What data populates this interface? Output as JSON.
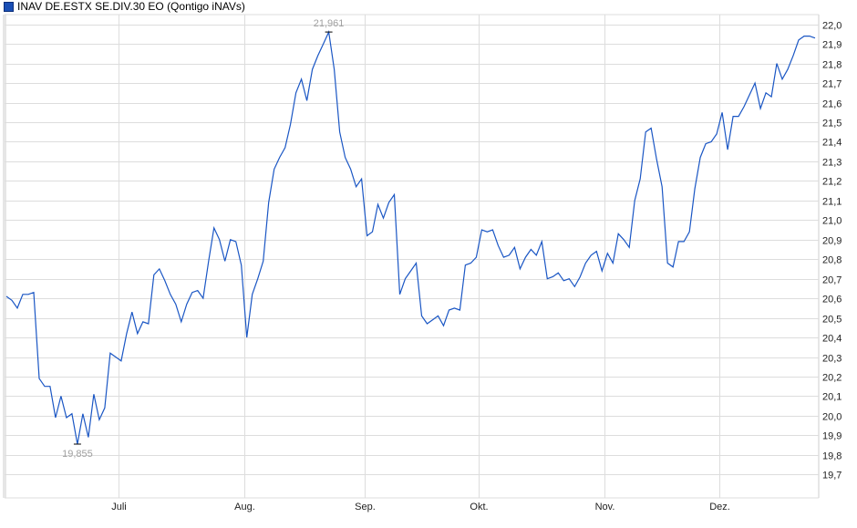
{
  "legend": {
    "label": "INAV DE.ESTX SE.DIV.30 EO (Qontigo iNAVs)",
    "color": "#1a4fb5"
  },
  "chart_data": {
    "type": "line",
    "title": "",
    "xlabel": "",
    "ylabel": "",
    "grid": true,
    "legend_position": "top-left",
    "y_axis_side": "right",
    "ylim": [
      19.58,
      22.05
    ],
    "y_ticks": [
      "19,7",
      "19,8",
      "19,9",
      "20,0",
      "20,1",
      "20,2",
      "20,3",
      "20,4",
      "20,5",
      "20,6",
      "20,7",
      "20,8",
      "20,9",
      "21,0",
      "21,1",
      "21,2",
      "21,3",
      "21,4",
      "21,5",
      "21,6",
      "21,7",
      "21,8",
      "21,9",
      "22,0"
    ],
    "x_ticks": [
      {
        "month": "07",
        "label": "Juli"
      },
      {
        "month": "08",
        "label": "Aug."
      },
      {
        "month": "09",
        "label": "Sep."
      },
      {
        "month": "10",
        "label": "Okt."
      },
      {
        "month": "11",
        "label": "Nov."
      },
      {
        "month": "12",
        "label": "Dez."
      }
    ],
    "annotations": {
      "max": {
        "label": "21,961",
        "value": 21.961
      },
      "min": {
        "label": "19,855",
        "value": 19.855
      }
    },
    "series": [
      {
        "color": "#1a56c4",
        "dates": [
          "05-31",
          "06-03",
          "06-04",
          "06-05",
          "06-06",
          "06-07",
          "06-10",
          "06-11",
          "06-12",
          "06-13",
          "06-14",
          "06-17",
          "06-18",
          "06-19",
          "06-20",
          "06-21",
          "06-24",
          "06-25",
          "06-26",
          "06-27",
          "06-28",
          "07-01",
          "07-02",
          "07-03",
          "07-04",
          "07-05",
          "07-08",
          "07-09",
          "07-10",
          "07-11",
          "07-12",
          "07-15",
          "07-16",
          "07-17",
          "07-18",
          "07-19",
          "07-22",
          "07-23",
          "07-24",
          "07-25",
          "07-26",
          "07-29",
          "07-30",
          "07-31",
          "08-01",
          "08-02",
          "08-05",
          "08-06",
          "08-07",
          "08-08",
          "08-09",
          "08-12",
          "08-13",
          "08-14",
          "08-15",
          "08-16",
          "08-19",
          "08-20",
          "08-21",
          "08-22",
          "08-23",
          "08-26",
          "08-27",
          "08-28",
          "08-29",
          "08-30",
          "09-02",
          "09-03",
          "09-04",
          "09-05",
          "09-06",
          "09-09",
          "09-10",
          "09-11",
          "09-12",
          "09-13",
          "09-16",
          "09-17",
          "09-18",
          "09-19",
          "09-20",
          "09-23",
          "09-24",
          "09-25",
          "09-26",
          "09-27",
          "09-30",
          "10-01",
          "10-02",
          "10-03",
          "10-04",
          "10-07",
          "10-08",
          "10-09",
          "10-10",
          "10-11",
          "10-14",
          "10-15",
          "10-16",
          "10-17",
          "10-18",
          "10-21",
          "10-22",
          "10-23",
          "10-24",
          "10-25",
          "10-28",
          "10-29",
          "10-30",
          "10-31",
          "11-01",
          "11-04",
          "11-05",
          "11-06",
          "11-07",
          "11-08",
          "11-11",
          "11-12",
          "11-13",
          "11-14",
          "11-15",
          "11-18",
          "11-19",
          "11-20",
          "11-21",
          "11-22",
          "11-25",
          "11-26",
          "11-27",
          "11-28",
          "11-29",
          "12-02",
          "12-03",
          "12-04",
          "12-05",
          "12-06",
          "12-09",
          "12-10",
          "12-11",
          "12-12",
          "12-13",
          "12-16",
          "12-17",
          "12-18",
          "12-19",
          "12-20",
          "12-23",
          "12-24",
          "12-25"
        ],
        "values": [
          20.61,
          20.59,
          20.55,
          20.62,
          20.62,
          20.63,
          20.19,
          20.15,
          20.15,
          19.99,
          20.1,
          19.99,
          20.01,
          19.855,
          20.01,
          19.89,
          20.11,
          19.98,
          20.04,
          20.32,
          20.3,
          20.28,
          20.42,
          20.53,
          20.42,
          20.48,
          20.47,
          20.72,
          20.75,
          20.69,
          20.62,
          20.57,
          20.48,
          20.57,
          20.63,
          20.64,
          20.6,
          20.79,
          20.96,
          20.9,
          20.79,
          20.9,
          20.89,
          20.77,
          20.4,
          20.62,
          20.7,
          20.79,
          21.09,
          21.26,
          21.32,
          21.37,
          21.49,
          21.65,
          21.72,
          21.61,
          21.77,
          21.84,
          21.9,
          21.961,
          21.77,
          21.45,
          21.32,
          21.26,
          21.17,
          21.21,
          20.92,
          20.94,
          21.08,
          21.01,
          21.09,
          21.13,
          20.62,
          20.7,
          20.74,
          20.78,
          20.51,
          20.47,
          20.49,
          20.51,
          20.46,
          20.54,
          20.55,
          20.54,
          20.77,
          20.78,
          20.81,
          20.95,
          20.94,
          20.95,
          20.87,
          20.81,
          20.82,
          20.86,
          20.75,
          20.81,
          20.85,
          20.82,
          20.89,
          20.7,
          20.71,
          20.73,
          20.69,
          20.7,
          20.66,
          20.71,
          20.78,
          20.82,
          20.84,
          20.74,
          20.83,
          20.78,
          20.93,
          20.9,
          20.86,
          21.1,
          21.21,
          21.45,
          21.47,
          21.31,
          21.17,
          20.78,
          20.76,
          20.89,
          20.89,
          20.94,
          21.16,
          21.32,
          21.39,
          21.4,
          21.44,
          21.55,
          21.36,
          21.53,
          21.53,
          21.58,
          21.64,
          21.7,
          21.57,
          21.65,
          21.63,
          21.8,
          21.72,
          21.77,
          21.84,
          21.92,
          21.94,
          21.94,
          21.93
        ]
      }
    ]
  }
}
